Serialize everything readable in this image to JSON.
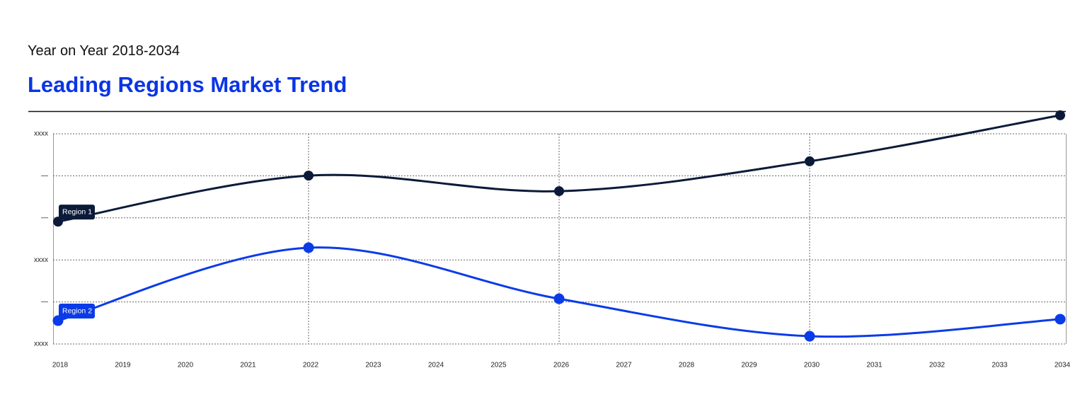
{
  "chart_data": {
    "type": "line",
    "subtitle": "Year on Year 2018-2034",
    "title": "Leading Regions Market Trend",
    "x": [
      2018,
      2022,
      2026,
      2030,
      2034
    ],
    "xlim": [
      2018,
      2034
    ],
    "xticks": [
      2018,
      2019,
      2020,
      2021,
      2022,
      2023,
      2024,
      2025,
      2026,
      2027,
      2028,
      2029,
      2030,
      2031,
      2032,
      2033,
      2034
    ],
    "ylim": [
      0,
      100
    ],
    "yticks": [
      {
        "value": 0,
        "label": "xxxx"
      },
      {
        "value": 20,
        "label": "—"
      },
      {
        "value": 40,
        "label": "xxxx"
      },
      {
        "value": 60,
        "label": "—"
      },
      {
        "value": 80,
        "label": "—"
      },
      {
        "value": 100,
        "label": "xxxx"
      }
    ],
    "grid": true,
    "series": [
      {
        "name": "Region 1",
        "color": "#0c1a3a",
        "values": [
          58.2,
          80.1,
          72.7,
          86.9,
          108.8
        ]
      },
      {
        "name": "Region 2",
        "color": "#0a3be8",
        "values": [
          11.1,
          45.8,
          21.5,
          3.7,
          11.8
        ]
      }
    ]
  }
}
